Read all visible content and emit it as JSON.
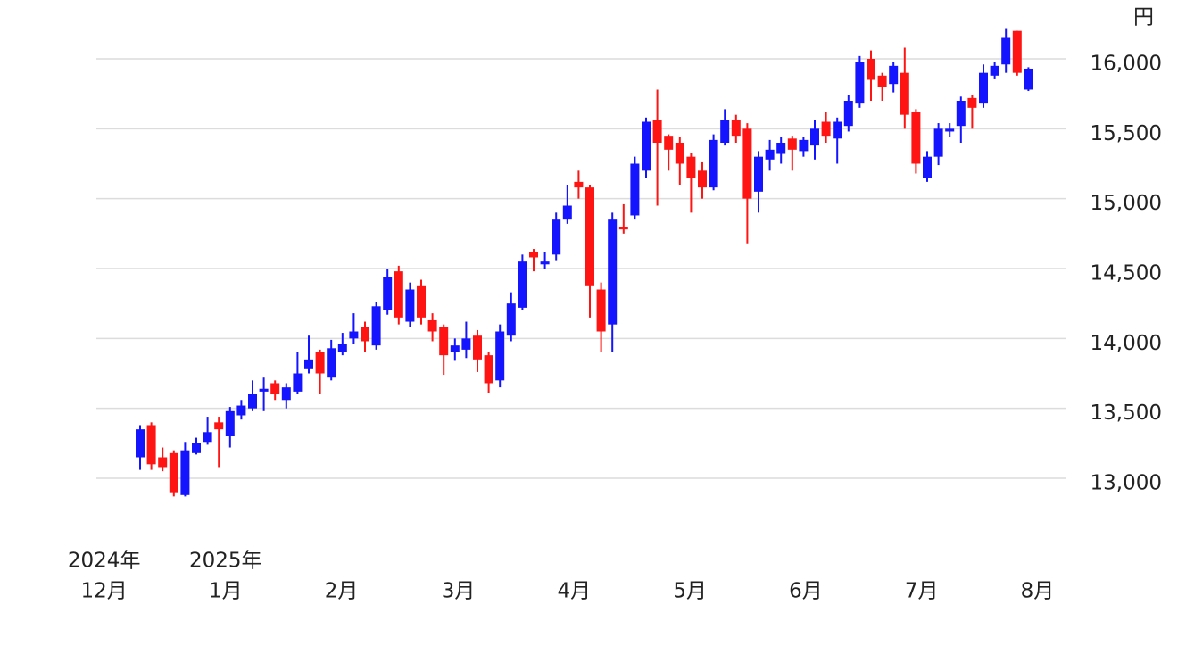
{
  "chart_data": {
    "type": "candlestick",
    "y_unit": "円",
    "categories": [
      null,
      null,
      null,
      null,
      null,
      null,
      null,
      null,
      null,
      null,
      null,
      null,
      null,
      null,
      null,
      null,
      null,
      null,
      null,
      null,
      null,
      null,
      null,
      null,
      null,
      null,
      null,
      null,
      null,
      null,
      null,
      null,
      null,
      null,
      null,
      null,
      null,
      null,
      null,
      null,
      null,
      null,
      null,
      null,
      null,
      null,
      null,
      null,
      null,
      null,
      null,
      null,
      null,
      null,
      null,
      null,
      null,
      null,
      null,
      null,
      null,
      null,
      null,
      null,
      null,
      null,
      null,
      null,
      null,
      null,
      null,
      null,
      null,
      null,
      null,
      null,
      null,
      null,
      null,
      null
    ],
    "open": [
      13150,
      13380,
      13150,
      13180,
      12880,
      13180,
      13260,
      13400,
      13300,
      13450,
      13500,
      13620,
      13680,
      13560,
      13620,
      13780,
      13900,
      13720,
      13900,
      14000,
      14080,
      13950,
      14200,
      14480,
      14120,
      14380,
      14130,
      14080,
      13900,
      13920,
      14020,
      13880,
      13700,
      14020,
      14220,
      14620,
      14530,
      14600,
      14850,
      15120,
      15080,
      14350,
      14100,
      14800,
      14880,
      15200,
      15560,
      15450,
      15400,
      15300,
      15200,
      15080,
      15400,
      15560,
      15500,
      15050,
      15280,
      15320,
      15430,
      15340,
      15380,
      15550,
      15430,
      15520,
      15680,
      16000,
      15880,
      15820,
      15900,
      15620,
      15150,
      15300,
      15480,
      15520,
      15720,
      15680,
      15880,
      15960,
      16200,
      15780
    ],
    "high": [
      13380,
      13400,
      13220,
      13200,
      13260,
      13290,
      13440,
      13440,
      13510,
      13560,
      13700,
      13720,
      13700,
      13680,
      13900,
      14020,
      13920,
      13990,
      14040,
      14180,
      14120,
      14260,
      14500,
      14520,
      14400,
      14420,
      14180,
      14100,
      14000,
      14120,
      14060,
      13900,
      14100,
      14330,
      14600,
      14640,
      14620,
      14900,
      15100,
      15200,
      15100,
      14400,
      14900,
      14960,
      15300,
      15580,
      15780,
      15460,
      15440,
      15330,
      15260,
      15460,
      15640,
      15600,
      15540,
      15340,
      15420,
      15440,
      15450,
      15440,
      15560,
      15620,
      15580,
      15740,
      16020,
      16060,
      15900,
      15980,
      16080,
      15640,
      15340,
      15540,
      15540,
      15730,
      15740,
      15960,
      15980,
      16220,
      16200,
      15940
    ],
    "low": [
      13060,
      13060,
      13050,
      12870,
      12870,
      13170,
      13240,
      13080,
      13220,
      13420,
      13480,
      13480,
      13560,
      13500,
      13600,
      13750,
      13600,
      13700,
      13880,
      13960,
      13900,
      13920,
      14170,
      14100,
      14080,
      14100,
      13980,
      13740,
      13840,
      13860,
      13760,
      13610,
      13650,
      13980,
      14200,
      14480,
      14500,
      14560,
      14820,
      15000,
      14150,
      13900,
      13900,
      14750,
      14850,
      15150,
      14950,
      15200,
      15100,
      14900,
      15000,
      15060,
      15380,
      15400,
      14680,
      14900,
      15200,
      15250,
      15200,
      15300,
      15280,
      15400,
      15250,
      15480,
      15650,
      15700,
      15700,
      15760,
      15500,
      15180,
      15120,
      15240,
      15440,
      15400,
      15500,
      15650,
      15860,
      15900,
      15880,
      15770
    ],
    "close": [
      13350,
      13100,
      13080,
      12900,
      13200,
      13250,
      13330,
      13350,
      13480,
      13520,
      13600,
      13640,
      13600,
      13650,
      13750,
      13850,
      13750,
      13930,
      13960,
      14050,
      13980,
      14230,
      14440,
      14150,
      14350,
      14150,
      14050,
      13880,
      13950,
      14000,
      13850,
      13680,
      14050,
      14250,
      14550,
      14580,
      14550,
      14850,
      14950,
      15080,
      14380,
      14050,
      14850,
      14780,
      15250,
      15550,
      15400,
      15350,
      15250,
      15150,
      15080,
      15420,
      15560,
      15450,
      15000,
      15300,
      15350,
      15400,
      15350,
      15420,
      15500,
      15450,
      15550,
      15700,
      15980,
      15850,
      15800,
      15950,
      15600,
      15250,
      15300,
      15500,
      15500,
      15700,
      15650,
      15900,
      15950,
      16150,
      15900,
      15930
    ],
    "up_color": "#1414ff",
    "down_color": "#ff1414",
    "ylim": [
      12700,
      16300
    ],
    "yticks": [
      {
        "value": 13000,
        "label": "13,000"
      },
      {
        "value": 13500,
        "label": "13,500"
      },
      {
        "value": 14000,
        "label": "14,000"
      },
      {
        "value": 14500,
        "label": "14,500"
      },
      {
        "value": 15000,
        "label": "15,000"
      },
      {
        "value": 15500,
        "label": "15,500"
      },
      {
        "value": 16000,
        "label": "16,000"
      }
    ],
    "xticks": [
      {
        "value": -3.2,
        "label": "12月"
      },
      {
        "value": 7.6,
        "label": "1月"
      },
      {
        "value": 17.9,
        "label": "2月"
      },
      {
        "value": 28.3,
        "label": "3月"
      },
      {
        "value": 38.6,
        "label": "4月"
      },
      {
        "value": 48.9,
        "label": "5月"
      },
      {
        "value": 59.2,
        "label": "6月"
      },
      {
        "value": 69.5,
        "label": "7月"
      },
      {
        "value": 79.8,
        "label": "8月"
      }
    ],
    "x_year_labels": [
      {
        "value": -3.2,
        "label": "2024年"
      },
      {
        "value": 7.6,
        "label": "2025年"
      }
    ],
    "grid": true
  }
}
